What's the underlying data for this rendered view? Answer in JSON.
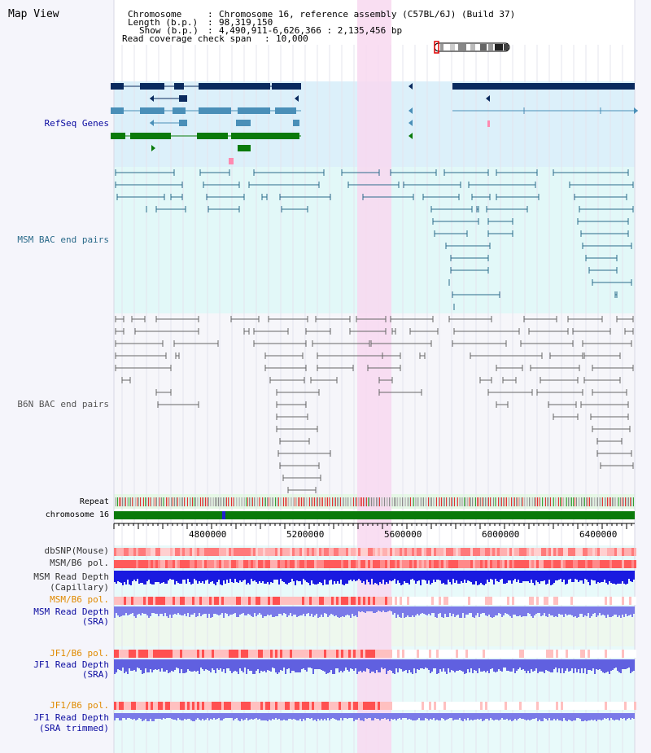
{
  "title": "Map View",
  "header": {
    "chromosome_label": "Chromosome",
    "chromosome_value": "Chromosome 16, reference assembly (C57BL/6J) (Build 37)",
    "length_label": "Length (b.p.)",
    "length_value": "98,319,150",
    "show_label": "Show (b.p.)",
    "show_value": "4,490,911-6,626,366 : 2,135,456 bp",
    "coverage_label": "Read coverage check span",
    "coverage_value": "10,000",
    "separator": ":"
  },
  "tracks": {
    "refseq": "RefSeq Genes",
    "msm_bac": "MSM BAC end pairs",
    "b6n_bac": "B6N BAC end pairs",
    "repeat": "Repeat",
    "chromosome": "chromosome 16",
    "dbsnp": "dbSNP(Mouse)",
    "msm_b6_pol": "MSM/B6 pol.",
    "msm_depth_cap_1": "MSM Read Depth",
    "msm_depth_cap_2": "(Capillary)",
    "msm_b6_pol_sra": "MSM/B6 pol.",
    "msm_depth_sra_1": "MSM Read Depth",
    "msm_depth_sra_2": "(SRA)",
    "jf1_b6_pol": "JF1/B6 pol.",
    "jf1_depth_sra_1": "JF1 Read Depth",
    "jf1_depth_sra_2": "(SRA)",
    "jf1_b6_pol_trim": "JF1/B6 pol.",
    "jf1_depth_trim_1": "JF1 Read Depth",
    "jf1_depth_trim_2": "(SRA trimmed)"
  },
  "axis": {
    "ticks": [
      "4800000",
      "5200000",
      "5600000",
      "6000000",
      "6400000"
    ]
  },
  "colors": {
    "refseq_dark": "#0a2a5e",
    "refseq_mid": "#4a8fb8",
    "refseq_green": "#0a7a0a",
    "msm_bac": "#2a6a8a",
    "b6n_bac": "#666666",
    "highlight": "#f8d8f0",
    "chromosome_bar": "#0a7a0a",
    "read_depth": "#1a1ae0",
    "label_blue": "#0a0aa0",
    "label_orange": "#e08a00"
  }
}
